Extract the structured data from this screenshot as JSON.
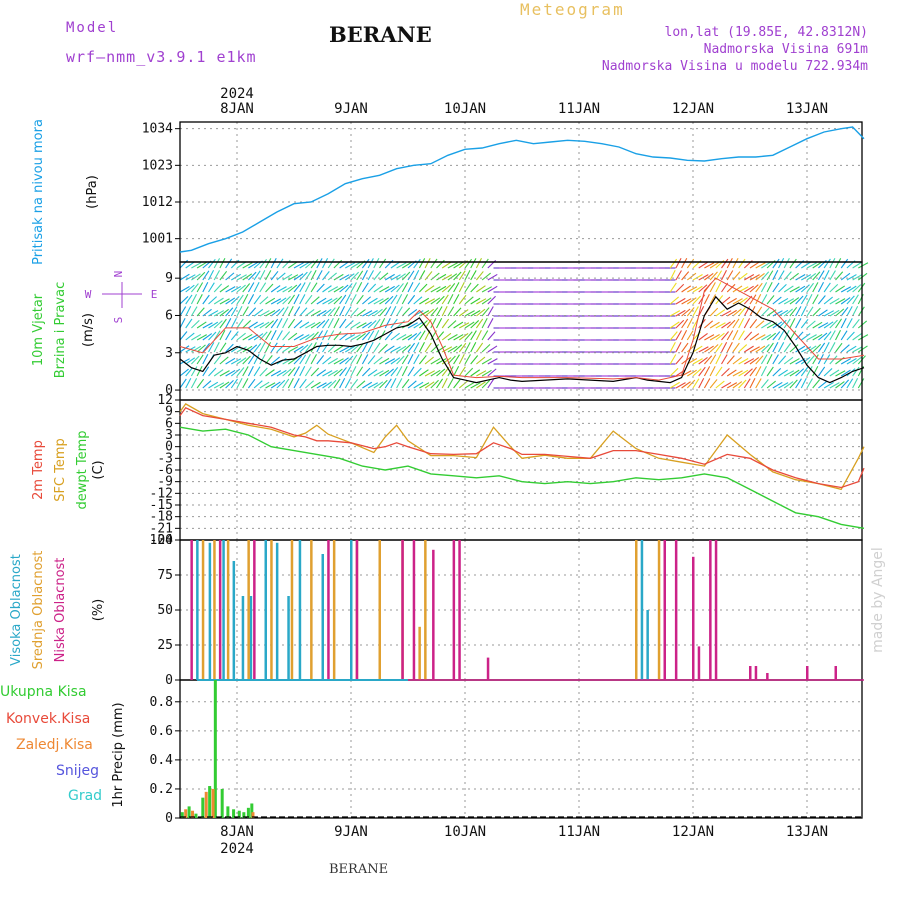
{
  "header": {
    "model_label": "Model",
    "model_name": "wrf—nmm_v3.9.1  e1km",
    "station": "BERANE",
    "meteogram": "Meteogram",
    "lonlat": "lon,lat (19.85E, 42.8312N)",
    "elevation": "Nadmorska Visina 691m",
    "model_elevation": "Nadmorska Visina u modelu 722.934m",
    "credit": "made by Angel",
    "footer_station": "BERANE"
  },
  "colors": {
    "pressure": "#1aa0e6",
    "temp2m": "#e84a3a",
    "sfc_temp": "#d8a020",
    "dewpoint": "#33cc33",
    "high_cloud": "#2aa8c8",
    "mid_cloud": "#e0a030",
    "low_cloud": "#cc2288",
    "total_precip": "#33cc33",
    "conv_precip": "#e84a3a",
    "strat_precip": "#ee8833",
    "snow": "#5555dd",
    "hail": "#33cccc",
    "wind_mean": "#000000",
    "wind_gust": "#e84a3a",
    "meteogram_title": "#e8c060",
    "header_purple": "#a040d0"
  },
  "chart_data": {
    "type": "meteogram",
    "x": {
      "unit": "days since start",
      "range": [
        0.0,
        6.0
      ],
      "days": [
        "8JAN",
        "9JAN",
        "10JAN",
        "11JAN",
        "12JAN",
        "13JAN"
      ],
      "day_pos": [
        0.5,
        1.5,
        2.5,
        3.5,
        4.5,
        5.5
      ],
      "year_label": "2024"
    },
    "panels": [
      {
        "id": "pressure",
        "label": "Pritisak na nivou mora",
        "unit": "(hPa)",
        "ylim": [
          994,
          1036
        ],
        "yticks": [
          1001,
          1012,
          1023,
          1034
        ],
        "series": [
          {
            "name": "pressure",
            "x": [
              0.0,
              0.1,
              0.25,
              0.4,
              0.55,
              0.7,
              0.85,
              1.0,
              1.15,
              1.3,
              1.45,
              1.6,
              1.75,
              1.9,
              2.05,
              2.2,
              2.35,
              2.5,
              2.65,
              2.8,
              2.95,
              3.1,
              3.25,
              3.4,
              3.55,
              3.7,
              3.85,
              4.0,
              4.15,
              4.3,
              4.45,
              4.6,
              4.75,
              4.9,
              5.05,
              5.2,
              5.35,
              5.5,
              5.65,
              5.8,
              5.9,
              6.0
            ],
            "y": [
              997,
              997.5,
              999.5,
              1001,
              1003,
              1006,
              1009,
              1011.5,
              1012,
              1014.5,
              1017.5,
              1019,
              1020,
              1022,
              1023,
              1023.5,
              1026,
              1027.8,
              1028.2,
              1029.5,
              1030.5,
              1029.5,
              1030,
              1030.5,
              1030.2,
              1029.5,
              1028.5,
              1026.5,
              1025.5,
              1025.2,
              1024.5,
              1024.3,
              1025,
              1025.5,
              1025.5,
              1026,
              1028.5,
              1031,
              1033,
              1034,
              1034.5,
              1031
            ]
          }
        ]
      },
      {
        "id": "wind",
        "label": "10m Vjetar",
        "label2": "Brzina i Pravac",
        "unit": "(m/s)",
        "compass": [
          "N",
          "W",
          "E",
          "S"
        ],
        "ylim": [
          -0.8,
          10.3
        ],
        "yticks": [
          0,
          3,
          6,
          9
        ],
        "series": [
          {
            "name": "wind_mean",
            "x": [
              0.0,
              0.1,
              0.2,
              0.3,
              0.4,
              0.5,
              0.6,
              0.7,
              0.8,
              0.9,
              1.0,
              1.1,
              1.2,
              1.3,
              1.4,
              1.5,
              1.6,
              1.7,
              1.8,
              1.9,
              2.0,
              2.1,
              2.2,
              2.3,
              2.4,
              2.5,
              2.6,
              2.7,
              2.8,
              2.9,
              3.0,
              3.2,
              3.4,
              3.6,
              3.8,
              4.0,
              4.1,
              4.2,
              4.3,
              4.4,
              4.5,
              4.6,
              4.7,
              4.8,
              4.9,
              5.0,
              5.1,
              5.2,
              5.3,
              5.4,
              5.5,
              5.6,
              5.7,
              5.8,
              5.9,
              6.0
            ],
            "y": [
              2.5,
              1.8,
              1.5,
              2.8,
              3.0,
              3.5,
              3.2,
              2.5,
              2.0,
              2.4,
              2.5,
              3.0,
              3.5,
              3.6,
              3.6,
              3.5,
              3.7,
              4.0,
              4.5,
              5.0,
              5.2,
              5.8,
              4.5,
              2.5,
              1.0,
              0.8,
              0.6,
              0.8,
              1.0,
              0.8,
              0.7,
              0.8,
              0.9,
              0.8,
              0.7,
              1.0,
              0.8,
              0.7,
              0.6,
              1.0,
              3.0,
              6.0,
              7.5,
              6.5,
              7.0,
              6.5,
              5.8,
              5.5,
              4.8,
              3.5,
              2.0,
              1.0,
              0.6,
              1.0,
              1.5,
              1.8
            ]
          },
          {
            "name": "wind_gust",
            "x": [
              0.0,
              0.2,
              0.4,
              0.6,
              0.8,
              1.0,
              1.2,
              1.4,
              1.6,
              1.8,
              2.0,
              2.1,
              2.2,
              2.3,
              2.4,
              2.6,
              2.8,
              3.0,
              3.4,
              3.8,
              4.0,
              4.2,
              4.4,
              4.5,
              4.6,
              4.7,
              4.8,
              5.0,
              5.2,
              5.4,
              5.6,
              5.8,
              6.0
            ],
            "y": [
              3.5,
              3.0,
              5.0,
              5.0,
              3.5,
              3.5,
              4.2,
              4.5,
              4.6,
              5.2,
              5.5,
              6.4,
              5.5,
              3.5,
              1.2,
              1.0,
              1.1,
              1.0,
              1.0,
              0.9,
              1.0,
              0.8,
              1.2,
              4.0,
              8.0,
              9.0,
              8.5,
              7.5,
              6.5,
              4.5,
              2.5,
              2.5,
              2.8
            ]
          }
        ]
      },
      {
        "id": "temperature",
        "label": "2m Temp",
        "label2": "SFC Temp",
        "label3": "dewpt Temp",
        "unit": "(C)",
        "ylim": [
          -24,
          12
        ],
        "yticks": [
          12,
          9,
          6,
          3,
          0,
          -3,
          -6,
          -9,
          -12,
          -15,
          -18,
          -21,
          -24
        ],
        "series": [
          {
            "name": "2m Temp",
            "x": [
              0.0,
              0.05,
              0.2,
              0.4,
              0.6,
              0.8,
              1.0,
              1.1,
              1.2,
              1.3,
              1.5,
              1.7,
              1.8,
              1.9,
              2.0,
              2.2,
              2.4,
              2.6,
              2.75,
              2.9,
              3.0,
              3.2,
              3.4,
              3.6,
              3.8,
              4.0,
              4.2,
              4.4,
              4.6,
              4.8,
              5.0,
              5.2,
              5.4,
              5.6,
              5.8,
              5.95,
              6.0
            ],
            "y": [
              8,
              10,
              8,
              7,
              6,
              5,
              3,
              2.5,
              1.5,
              1.5,
              1.0,
              -0.5,
              0,
              1,
              0,
              -1.8,
              -2,
              -1.8,
              1,
              -0.5,
              -2,
              -2,
              -2.5,
              -3,
              -1,
              -1,
              -2,
              -3,
              -4.5,
              -2,
              -3,
              -6,
              -8,
              -9.5,
              -10.5,
              -9,
              -5.5
            ]
          },
          {
            "name": "SFC Temp",
            "x": [
              0.0,
              0.05,
              0.2,
              0.4,
              0.6,
              0.8,
              1.0,
              1.1,
              1.2,
              1.3,
              1.5,
              1.7,
              1.8,
              1.9,
              2.0,
              2.2,
              2.4,
              2.6,
              2.75,
              2.9,
              3.0,
              3.2,
              3.4,
              3.6,
              3.8,
              4.0,
              4.2,
              4.4,
              4.6,
              4.8,
              5.0,
              5.2,
              5.4,
              5.6,
              5.8,
              5.95,
              6.0
            ],
            "y": [
              9,
              11,
              8.5,
              7,
              5.5,
              4.5,
              2.5,
              3.5,
              5.5,
              3.2,
              1.0,
              -1.5,
              2.5,
              5.5,
              1.5,
              -2.3,
              -2.3,
              -2.8,
              5.0,
              0,
              -3,
              -2.2,
              -3,
              -3,
              4,
              -0.5,
              -3,
              -4,
              -5,
              3,
              -2,
              -6.5,
              -8.5,
              -9.5,
              -11,
              -3,
              0
            ]
          },
          {
            "name": "dewpt Temp",
            "x": [
              0.0,
              0.2,
              0.4,
              0.6,
              0.8,
              1.0,
              1.2,
              1.4,
              1.6,
              1.8,
              2.0,
              2.2,
              2.4,
              2.6,
              2.8,
              3.0,
              3.2,
              3.4,
              3.6,
              3.8,
              4.0,
              4.2,
              4.4,
              4.6,
              4.8,
              5.0,
              5.2,
              5.4,
              5.6,
              5.8,
              6.0
            ],
            "y": [
              5,
              4,
              4.5,
              3,
              0,
              -1,
              -2,
              -3,
              -5,
              -6,
              -5,
              -7,
              -7.5,
              -8,
              -7.5,
              -9,
              -9.5,
              -9,
              -9.5,
              -9,
              -8,
              -8.5,
              -8,
              -7,
              -8,
              -11,
              -14,
              -17,
              -18,
              -20,
              -21
            ]
          }
        ]
      },
      {
        "id": "cloud",
        "label": "Visoka Oblacnost",
        "label2": "Srednja Oblacnost",
        "label3": "Niska Oblacnost",
        "unit": "(%)",
        "ylim": [
          0,
          100
        ],
        "yticks": [
          0,
          25,
          50,
          75,
          100
        ],
        "series": [
          {
            "name": "Visoka Oblacnost",
            "x": [
              0.15,
              0.26,
              0.38,
              0.47,
              0.55,
              0.62,
              0.75,
              0.85,
              0.95,
              1.05,
              1.25,
              1.5,
              1.75,
              4.05,
              4.1
            ],
            "y": [
              100,
              98,
              100,
              85,
              60,
              60,
              100,
              98,
              60,
              100,
              90,
              100,
              10,
              100,
              50
            ]
          },
          {
            "name": "Srednja Oblacnost",
            "x": [
              0.2,
              0.3,
              0.42,
              0.6,
              0.8,
              0.98,
              1.15,
              1.35,
              1.55,
              1.75,
              1.95,
              2.1,
              2.15,
              4.0,
              4.2
            ],
            "y": [
              100,
              100,
              100,
              100,
              100,
              100,
              100,
              100,
              100,
              100,
              100,
              38,
              100,
              100,
              100
            ]
          },
          {
            "name": "Niska Oblacnost",
            "x": [
              0.1,
              0.35,
              0.65,
              1.3,
              1.55,
              1.95,
              2.05,
              2.22,
              2.4,
              2.45,
              2.7,
              4.25,
              4.35,
              4.5,
              4.55,
              4.65,
              4.7,
              5.0,
              5.05,
              5.15,
              5.5,
              5.75
            ],
            "y": [
              100,
              100,
              100,
              100,
              100,
              100,
              100,
              93,
              100,
              100,
              16,
              100,
              100,
              88,
              24,
              100,
              100,
              10,
              10,
              5,
              10,
              10
            ]
          }
        ]
      },
      {
        "id": "precip",
        "label": "1hr Precip (mm)",
        "legend": [
          "Ukupna Kisa",
          "Konvek.Kisa",
          "Zaledj.Kisa",
          "Snijeg",
          "Grad"
        ],
        "ylim": [
          0,
          0.95
        ],
        "yticks": [
          0,
          0.2,
          0.4,
          0.6,
          0.8
        ],
        "series": [
          {
            "name": "Ukupna Kisa",
            "x": [
              0.02,
              0.08,
              0.14,
              0.2,
              0.26,
              0.31,
              0.37,
              0.42,
              0.47,
              0.52,
              0.56,
              0.6,
              0.63
            ],
            "y": [
              0.04,
              0.08,
              0.03,
              0.14,
              0.22,
              0.95,
              0.2,
              0.08,
              0.06,
              0.05,
              0.04,
              0.07,
              0.1
            ]
          },
          {
            "name": "Zaledj.Kisa",
            "x": [
              0.05,
              0.11,
              0.23,
              0.29,
              0.64
            ],
            "y": [
              0.06,
              0.05,
              0.18,
              0.2,
              0.04
            ]
          }
        ]
      }
    ]
  }
}
